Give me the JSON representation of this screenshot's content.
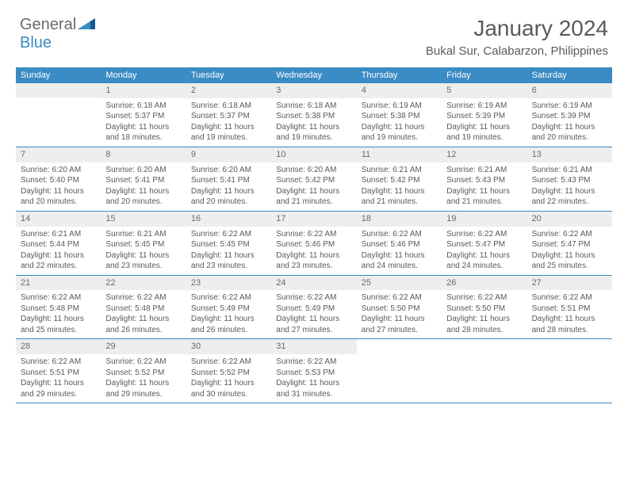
{
  "logo": {
    "general": "General",
    "blue": "Blue"
  },
  "header": {
    "month": "January 2024",
    "location": "Bukal Sur, Calabarzon, Philippines"
  },
  "colors": {
    "accent": "#3b8bc4",
    "text": "#5a5a5a",
    "headerBg": "#eeeeee"
  },
  "dayNames": [
    "Sunday",
    "Monday",
    "Tuesday",
    "Wednesday",
    "Thursday",
    "Friday",
    "Saturday"
  ],
  "firstDayOffset": 1,
  "days": [
    {
      "n": "1",
      "sunrise": "6:18 AM",
      "sunset": "5:37 PM",
      "daylight": "11 hours and 18 minutes."
    },
    {
      "n": "2",
      "sunrise": "6:18 AM",
      "sunset": "5:37 PM",
      "daylight": "11 hours and 19 minutes."
    },
    {
      "n": "3",
      "sunrise": "6:18 AM",
      "sunset": "5:38 PM",
      "daylight": "11 hours and 19 minutes."
    },
    {
      "n": "4",
      "sunrise": "6:19 AM",
      "sunset": "5:38 PM",
      "daylight": "11 hours and 19 minutes."
    },
    {
      "n": "5",
      "sunrise": "6:19 AM",
      "sunset": "5:39 PM",
      "daylight": "11 hours and 19 minutes."
    },
    {
      "n": "6",
      "sunrise": "6:19 AM",
      "sunset": "5:39 PM",
      "daylight": "11 hours and 20 minutes."
    },
    {
      "n": "7",
      "sunrise": "6:20 AM",
      "sunset": "5:40 PM",
      "daylight": "11 hours and 20 minutes."
    },
    {
      "n": "8",
      "sunrise": "6:20 AM",
      "sunset": "5:41 PM",
      "daylight": "11 hours and 20 minutes."
    },
    {
      "n": "9",
      "sunrise": "6:20 AM",
      "sunset": "5:41 PM",
      "daylight": "11 hours and 20 minutes."
    },
    {
      "n": "10",
      "sunrise": "6:20 AM",
      "sunset": "5:42 PM",
      "daylight": "11 hours and 21 minutes."
    },
    {
      "n": "11",
      "sunrise": "6:21 AM",
      "sunset": "5:42 PM",
      "daylight": "11 hours and 21 minutes."
    },
    {
      "n": "12",
      "sunrise": "6:21 AM",
      "sunset": "5:43 PM",
      "daylight": "11 hours and 21 minutes."
    },
    {
      "n": "13",
      "sunrise": "6:21 AM",
      "sunset": "5:43 PM",
      "daylight": "11 hours and 22 minutes."
    },
    {
      "n": "14",
      "sunrise": "6:21 AM",
      "sunset": "5:44 PM",
      "daylight": "11 hours and 22 minutes."
    },
    {
      "n": "15",
      "sunrise": "6:21 AM",
      "sunset": "5:45 PM",
      "daylight": "11 hours and 23 minutes."
    },
    {
      "n": "16",
      "sunrise": "6:22 AM",
      "sunset": "5:45 PM",
      "daylight": "11 hours and 23 minutes."
    },
    {
      "n": "17",
      "sunrise": "6:22 AM",
      "sunset": "5:46 PM",
      "daylight": "11 hours and 23 minutes."
    },
    {
      "n": "18",
      "sunrise": "6:22 AM",
      "sunset": "5:46 PM",
      "daylight": "11 hours and 24 minutes."
    },
    {
      "n": "19",
      "sunrise": "6:22 AM",
      "sunset": "5:47 PM",
      "daylight": "11 hours and 24 minutes."
    },
    {
      "n": "20",
      "sunrise": "6:22 AM",
      "sunset": "5:47 PM",
      "daylight": "11 hours and 25 minutes."
    },
    {
      "n": "21",
      "sunrise": "6:22 AM",
      "sunset": "5:48 PM",
      "daylight": "11 hours and 25 minutes."
    },
    {
      "n": "22",
      "sunrise": "6:22 AM",
      "sunset": "5:48 PM",
      "daylight": "11 hours and 26 minutes."
    },
    {
      "n": "23",
      "sunrise": "6:22 AM",
      "sunset": "5:49 PM",
      "daylight": "11 hours and 26 minutes."
    },
    {
      "n": "24",
      "sunrise": "6:22 AM",
      "sunset": "5:49 PM",
      "daylight": "11 hours and 27 minutes."
    },
    {
      "n": "25",
      "sunrise": "6:22 AM",
      "sunset": "5:50 PM",
      "daylight": "11 hours and 27 minutes."
    },
    {
      "n": "26",
      "sunrise": "6:22 AM",
      "sunset": "5:50 PM",
      "daylight": "11 hours and 28 minutes."
    },
    {
      "n": "27",
      "sunrise": "6:22 AM",
      "sunset": "5:51 PM",
      "daylight": "11 hours and 28 minutes."
    },
    {
      "n": "28",
      "sunrise": "6:22 AM",
      "sunset": "5:51 PM",
      "daylight": "11 hours and 29 minutes."
    },
    {
      "n": "29",
      "sunrise": "6:22 AM",
      "sunset": "5:52 PM",
      "daylight": "11 hours and 29 minutes."
    },
    {
      "n": "30",
      "sunrise": "6:22 AM",
      "sunset": "5:52 PM",
      "daylight": "11 hours and 30 minutes."
    },
    {
      "n": "31",
      "sunrise": "6:22 AM",
      "sunset": "5:53 PM",
      "daylight": "11 hours and 31 minutes."
    }
  ],
  "labels": {
    "sunrise": "Sunrise:",
    "sunset": "Sunset:",
    "daylight": "Daylight:"
  }
}
